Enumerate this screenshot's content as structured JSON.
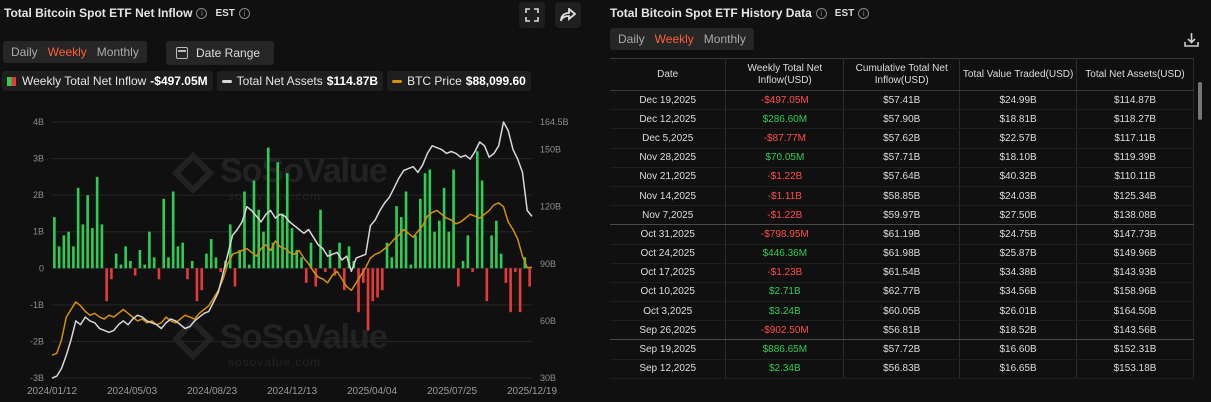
{
  "chart_panel": {
    "title": "Total Bitcoin Spot ETF Net Inflow",
    "timezone": "EST",
    "period_tabs": [
      "Daily",
      "Weekly",
      "Monthly"
    ],
    "active_tab": "Weekly",
    "date_range_label": "Date Range",
    "legend": [
      {
        "label": "Weekly Total Net Inflow",
        "value": "-$497.05M"
      },
      {
        "label": "Total Net Assets",
        "value": "$114.87B"
      },
      {
        "label": "BTC Price",
        "value": "$88,099.60"
      }
    ],
    "watermark": "SoSoValue",
    "watermark_sub": "sosovalue.com",
    "fullscreen_icon": "fullscreen-icon",
    "share_icon": "share-icon"
  },
  "colors": {
    "accent": "#ff5f36",
    "positive": "#2ecc54",
    "negative": "#e63a3a",
    "net_assets_line": "#d8d8d8",
    "btc_line": "#d4900e"
  },
  "chart_data": {
    "type": "bar",
    "x_tick_labels": [
      "2024/01/12",
      "2024/05/03",
      "2024/08/23",
      "2024/12/13",
      "2025/04/04",
      "2025/07/25",
      "2025/12/19"
    ],
    "y_left_ticks": [
      "4B",
      "3B",
      "2B",
      "1B",
      "0",
      "-1B",
      "-2B",
      "-3B"
    ],
    "y_right_ticks": [
      "164.5B",
      "150B",
      "120B",
      "90B",
      "60B",
      "30B"
    ],
    "ylim_left": [
      -3,
      4
    ],
    "ylim_right": [
      30,
      164.5
    ],
    "grid": true,
    "series": [
      {
        "name": "Weekly Total Net Inflow",
        "unit": "B",
        "values": [
          1.4,
          0.6,
          0.9,
          1.0,
          0.6,
          2.2,
          1.2,
          2.0,
          1.1,
          2.5,
          1.2,
          -0.9,
          -0.3,
          0.4,
          0.1,
          0.6,
          0.2,
          -0.2,
          0.5,
          0.1,
          1.0,
          0.3,
          -0.3,
          1.9,
          0.3,
          2.1,
          0.6,
          0.7,
          -0.3,
          0.2,
          -0.9,
          -0.6,
          0.4,
          0.8,
          0.3,
          -0.1,
          0.2,
          1.2,
          -0.5,
          0.5,
          2.1,
          0.1,
          2.4,
          1.6,
          1.0,
          3.3,
          0.7,
          2.9,
          1.5,
          2.6,
          1.1,
          0.5,
          0.3,
          -0.4,
          0.7,
          -0.5,
          1.6,
          -0.1,
          0.5,
          -0.2,
          0.7,
          -0.6,
          0.6,
          0.2,
          -1.2,
          -0.4,
          -1.7,
          -0.9,
          -0.8,
          -0.6,
          0.7,
          0.3,
          1.7,
          1.4,
          2.1,
          0.1,
          0.9,
          1.9,
          2.6,
          2.7,
          1.0,
          1.3,
          2.2,
          1.0,
          2.7,
          -0.5,
          0.2,
          0.9,
          -0.1,
          3.2,
          2.4,
          -0.9,
          0.9,
          1.3,
          0.4,
          -0.4,
          -1.2,
          -0.1,
          -1.2,
          0.3,
          -0.5
        ]
      },
      {
        "name": "Total Net Assets",
        "unit": "B",
        "values": [
          29.9,
          31,
          35,
          42,
          50,
          60,
          58,
          62,
          60,
          59,
          56,
          55,
          54,
          55,
          58,
          60,
          58,
          61,
          63,
          62,
          60,
          59,
          58,
          56,
          59,
          61,
          60,
          58,
          56,
          57,
          60,
          62,
          64,
          65,
          70,
          75,
          85,
          95,
          105,
          108,
          112,
          120,
          118,
          115,
          112,
          116,
          118,
          114,
          116,
          115,
          112,
          110,
          108,
          106,
          108,
          104,
          100,
          98,
          94,
          95,
          96,
          92,
          94,
          86,
          93,
          94,
          95,
          110,
          113,
          118,
          122,
          125,
          130,
          135,
          139,
          140,
          141,
          138,
          142,
          148,
          152,
          151,
          150,
          148,
          149,
          148,
          146,
          147,
          145,
          149,
          154,
          152,
          146,
          148,
          152,
          164.5,
          160,
          150,
          145,
          138,
          118,
          114.9
        ]
      },
      {
        "name": "BTC Price",
        "unit": "K USD",
        "values": [
          42,
          43,
          50,
          62,
          66,
          70,
          68,
          65,
          63,
          64,
          62,
          61,
          63,
          62,
          64,
          66,
          64,
          62,
          60,
          61,
          59,
          60,
          58,
          59,
          62,
          60,
          59,
          61,
          63,
          62,
          61,
          64,
          66,
          68,
          72,
          76,
          82,
          90,
          95,
          96,
          97,
          98,
          96,
          94,
          98,
          100,
          97,
          102,
          99,
          98,
          96,
          95,
          97,
          93,
          90,
          86,
          83,
          82,
          80,
          84,
          86,
          82,
          78,
          76,
          80,
          84,
          88,
          93,
          95,
          96,
          98,
          100,
          103,
          105,
          108,
          106,
          104,
          107,
          110,
          115,
          117,
          118,
          116,
          114,
          113,
          111,
          112,
          114,
          116,
          115,
          114,
          116,
          118,
          121,
          122,
          120,
          112,
          108,
          103,
          94,
          88,
          88.1
        ]
      }
    ]
  },
  "table_panel": {
    "title": "Total Bitcoin Spot ETF History Data",
    "timezone": "EST",
    "period_tabs": [
      "Daily",
      "Weekly",
      "Monthly"
    ],
    "active_tab": "Weekly",
    "download_icon": "download-icon",
    "columns": [
      "Date",
      "Weekly Total Net Inflow(USD)",
      "Cumulative Total Net Inflow(USD)",
      "Total Value Traded(USD)",
      "Total Net Assets(USD)"
    ],
    "rows": [
      [
        "Dec 19,2025",
        "-$497.05M",
        "$57.41B",
        "$24.99B",
        "$114.87B"
      ],
      [
        "Dec 12,2025",
        "$286.60M",
        "$57.90B",
        "$18.81B",
        "$118.27B"
      ],
      [
        "Dec 5,2025",
        "-$87.77M",
        "$57.62B",
        "$22.57B",
        "$117.11B"
      ],
      [
        "Nov 28,2025",
        "$70.05M",
        "$57.71B",
        "$18.10B",
        "$119.39B"
      ],
      [
        "Nov 21,2025",
        "-$1.22B",
        "$57.64B",
        "$40.32B",
        "$110.11B"
      ],
      [
        "Nov 14,2025",
        "-$1.11B",
        "$58.85B",
        "$24.03B",
        "$125.34B"
      ],
      [
        "Nov 7,2025",
        "-$1.22B",
        "$59.97B",
        "$27.50B",
        "$138.08B"
      ],
      [
        "Oct 31,2025",
        "-$798.95M",
        "$61.19B",
        "$24.75B",
        "$147.73B"
      ],
      [
        "Oct 24,2025",
        "$446.36M",
        "$61.98B",
        "$25.87B",
        "$149.96B"
      ],
      [
        "Oct 17,2025",
        "-$1.23B",
        "$61.54B",
        "$34.38B",
        "$143.93B"
      ],
      [
        "Oct 10,2025",
        "$2.71B",
        "$62.77B",
        "$34.56B",
        "$158.96B"
      ],
      [
        "Oct 3,2025",
        "$3.24B",
        "$60.05B",
        "$26.01B",
        "$164.50B"
      ],
      [
        "Sep 26,2025",
        "-$902.50M",
        "$56.81B",
        "$18.52B",
        "$143.56B"
      ],
      [
        "Sep 19,2025",
        "$886.65M",
        "$57.72B",
        "$16.60B",
        "$152.31B"
      ],
      [
        "Sep 12,2025",
        "$2.34B",
        "$56.83B",
        "$16.65B",
        "$153.18B"
      ]
    ]
  }
}
